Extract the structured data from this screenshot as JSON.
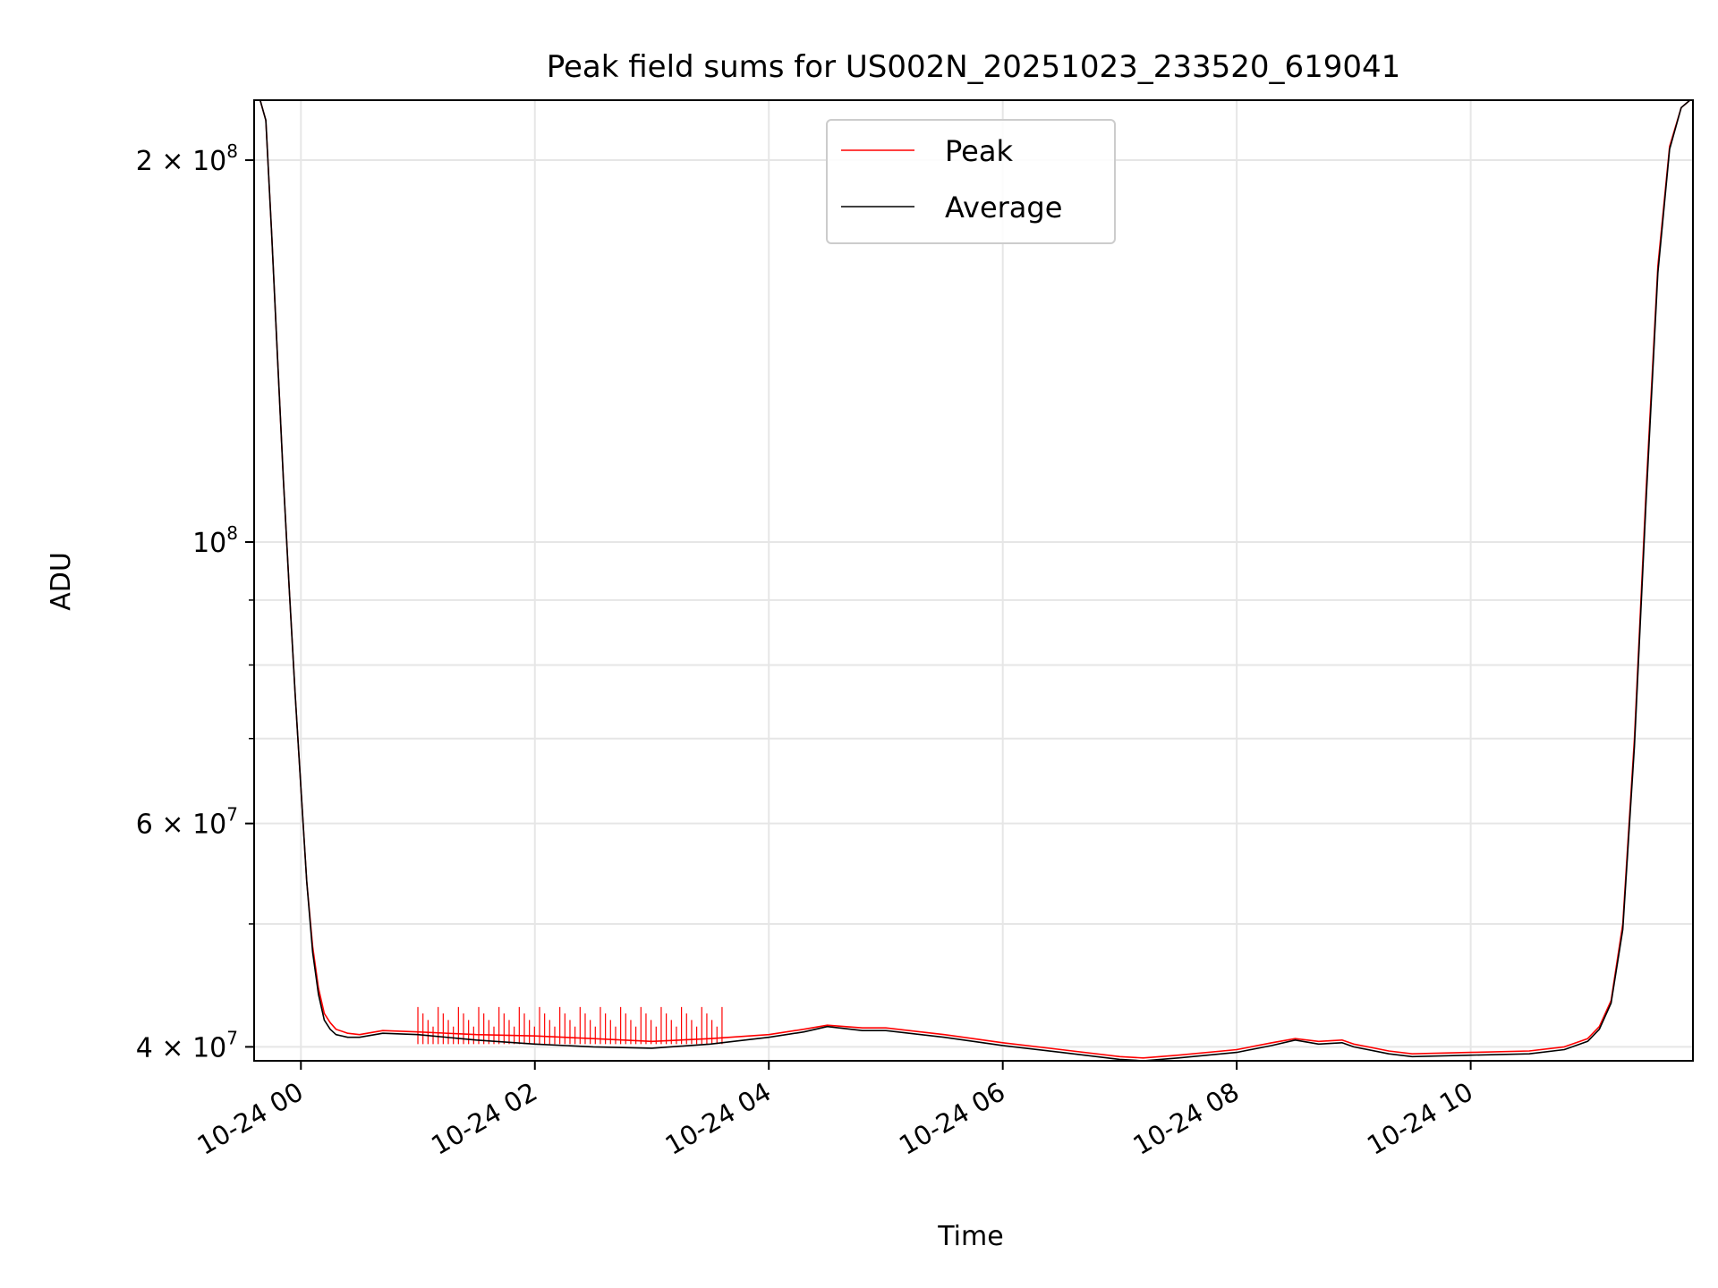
{
  "chart_data": {
    "type": "line",
    "title": "Peak field sums for US002N_20251023_233520_619041",
    "xlabel": "Time",
    "ylabel": "ADU",
    "yscale": "log",
    "grid": true,
    "legend_position": "upper-center",
    "x_unit": "hours since 10-24 00:00",
    "xlim": [
      -0.4,
      11.9
    ],
    "ylim": [
      39000000,
      223000000
    ],
    "x_ticks": [
      {
        "value": 0,
        "label": "10-24 00"
      },
      {
        "value": 2,
        "label": "10-24 02"
      },
      {
        "value": 4,
        "label": "10-24 04"
      },
      {
        "value": 6,
        "label": "10-24 06"
      },
      {
        "value": 8,
        "label": "10-24 08"
      },
      {
        "value": 10,
        "label": "10-24 10"
      }
    ],
    "y_major_ticks": [
      {
        "value": 40000000,
        "label_base": "4 × 10",
        "label_exp": "7"
      },
      {
        "value": 60000000,
        "label_base": "6 × 10",
        "label_exp": "7"
      },
      {
        "value": 100000000,
        "label_base": "10",
        "label_exp": "8"
      },
      {
        "value": 200000000,
        "label_base": "2 × 10",
        "label_exp": "8"
      }
    ],
    "y_minor_grid": [
      50000000,
      70000000,
      80000000,
      90000000
    ],
    "series": [
      {
        "name": "Peak",
        "color": "#ff0000",
        "x": [
          -0.36,
          -0.3,
          -0.25,
          -0.2,
          -0.15,
          -0.1,
          -0.05,
          0.0,
          0.05,
          0.1,
          0.15,
          0.2,
          0.25,
          0.3,
          0.4,
          0.5,
          0.7,
          1.0,
          1.5,
          2.0,
          2.5,
          3.0,
          3.5,
          4.0,
          4.3,
          4.5,
          4.8,
          5.0,
          5.5,
          6.0,
          6.5,
          7.0,
          7.2,
          7.5,
          8.0,
          8.3,
          8.5,
          8.7,
          8.9,
          9.0,
          9.3,
          9.5,
          10.0,
          10.5,
          10.8,
          11.0,
          11.1,
          11.2,
          11.3,
          11.4,
          11.5,
          11.6,
          11.7,
          11.8,
          11.9
        ],
        "values": [
          225000000,
          215000000,
          175000000,
          140000000,
          112000000,
          92000000,
          76000000,
          64000000,
          54000000,
          48000000,
          44500000,
          42500000,
          41800000,
          41300000,
          41000000,
          40900000,
          41200000,
          41100000,
          40900000,
          40800000,
          40600000,
          40400000,
          40600000,
          40900000,
          41300000,
          41600000,
          41400000,
          41400000,
          40900000,
          40300000,
          39800000,
          39300000,
          39200000,
          39400000,
          39800000,
          40300000,
          40600000,
          40400000,
          40500000,
          40200000,
          39700000,
          39500000,
          39600000,
          39700000,
          40000000,
          40600000,
          41500000,
          43500000,
          50000000,
          70000000,
          110000000,
          165000000,
          205000000,
          220000000,
          224000000
        ],
        "spike_region_hours": [
          1.0,
          3.6
        ],
        "spike_values": [
          43000000,
          42500000,
          42000000,
          41500000
        ]
      },
      {
        "name": "Average",
        "color": "#000000",
        "x": [
          -0.36,
          -0.3,
          -0.25,
          -0.2,
          -0.15,
          -0.1,
          -0.05,
          0.0,
          0.05,
          0.1,
          0.15,
          0.2,
          0.25,
          0.3,
          0.4,
          0.5,
          0.7,
          1.0,
          1.5,
          2.0,
          2.5,
          3.0,
          3.5,
          4.0,
          4.3,
          4.5,
          4.8,
          5.0,
          5.5,
          6.0,
          6.5,
          7.0,
          7.2,
          7.5,
          8.0,
          8.3,
          8.5,
          8.7,
          8.9,
          9.0,
          9.3,
          9.5,
          10.0,
          10.5,
          10.8,
          11.0,
          11.1,
          11.2,
          11.3,
          11.4,
          11.5,
          11.6,
          11.7,
          11.8,
          11.9
        ],
        "values": [
          225000000,
          215000000,
          175000000,
          140000000,
          112000000,
          92000000,
          76000000,
          64000000,
          54000000,
          47500000,
          44000000,
          42000000,
          41300000,
          40900000,
          40700000,
          40700000,
          41000000,
          40900000,
          40500000,
          40200000,
          40000000,
          39900000,
          40200000,
          40700000,
          41100000,
          41500000,
          41200000,
          41200000,
          40700000,
          40100000,
          39600000,
          39100000,
          39000000,
          39200000,
          39600000,
          40100000,
          40500000,
          40200000,
          40300000,
          40000000,
          39500000,
          39300000,
          39400000,
          39500000,
          39800000,
          40400000,
          41300000,
          43300000,
          49500000,
          69000000,
          108000000,
          163000000,
          204000000,
          220000000,
          224000000
        ]
      }
    ]
  }
}
